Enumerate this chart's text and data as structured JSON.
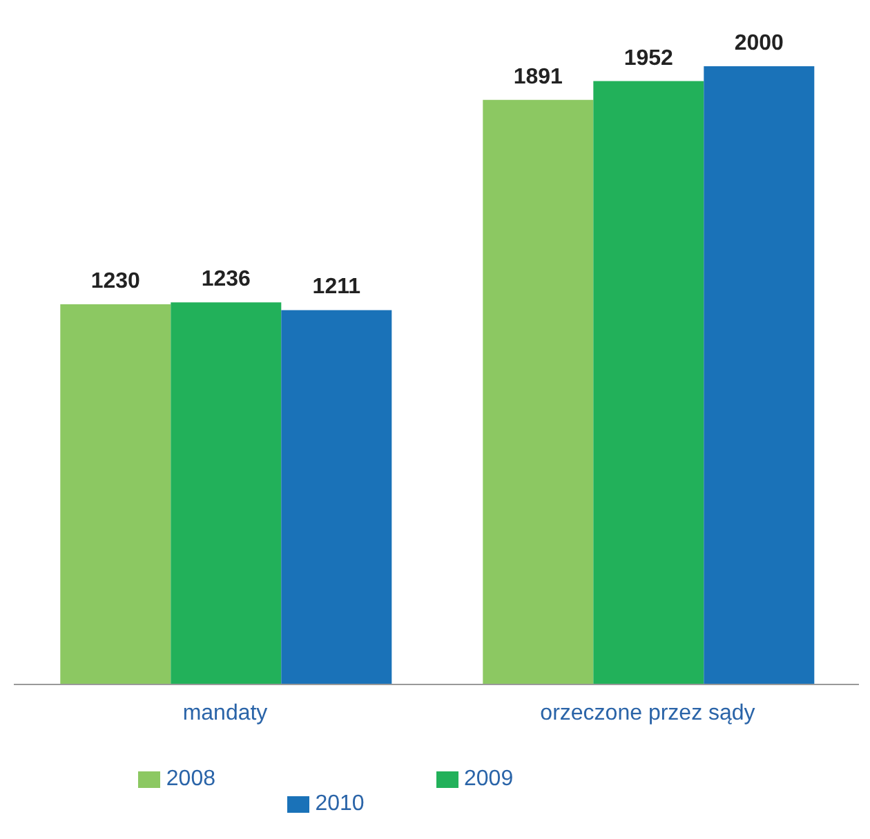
{
  "chart_data": {
    "type": "bar",
    "categories": [
      "mandaty",
      "orzeczone przez sądy"
    ],
    "series": [
      {
        "name": "2008",
        "color": "#8cc862",
        "values": [
          1230,
          1891
        ]
      },
      {
        "name": "2009",
        "color": "#22b15a",
        "values": [
          1236,
          1952
        ]
      },
      {
        "name": "2010",
        "color": "#1a72b8",
        "values": [
          1211,
          2000
        ]
      }
    ],
    "data_labels": true,
    "legend": "bottom",
    "grid": false
  }
}
